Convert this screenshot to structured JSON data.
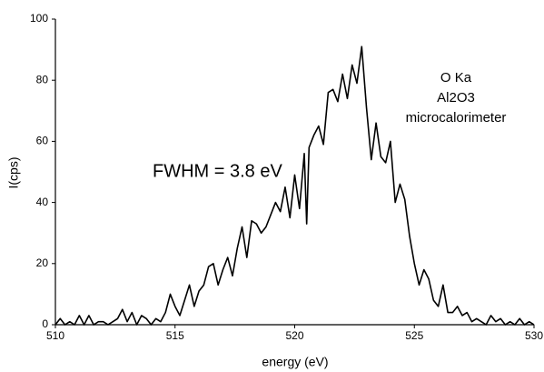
{
  "chart_data": {
    "type": "line",
    "annotations": [
      "FWHM = 3.8 eV",
      "O Ka",
      "Al2O3",
      "microcalorimeter"
    ],
    "xlabel": "energy (eV)",
    "ylabel": "I(cps)",
    "color": "#000000",
    "x": [
      510.0,
      510.2,
      510.4,
      510.6,
      510.8,
      511.0,
      511.2,
      511.4,
      511.6,
      511.8,
      512.0,
      512.2,
      512.4,
      512.6,
      512.8,
      513.0,
      513.2,
      513.4,
      513.6,
      513.8,
      514.0,
      514.2,
      514.4,
      514.6,
      514.8,
      515.0,
      515.2,
      515.4,
      515.6,
      515.8,
      516.0,
      516.2,
      516.4,
      516.6,
      516.8,
      517.0,
      517.2,
      517.4,
      517.6,
      517.8,
      518.0,
      518.2,
      518.4,
      518.6,
      518.8,
      519.0,
      519.2,
      519.4,
      519.6,
      519.8,
      520.0,
      520.2,
      520.4,
      520.5,
      520.6,
      520.8,
      521.0,
      521.2,
      521.4,
      521.6,
      521.8,
      522.0,
      522.2,
      522.4,
      522.6,
      522.8,
      523.0,
      523.2,
      523.4,
      523.6,
      523.8,
      524.0,
      524.2,
      524.4,
      524.6,
      524.8,
      525.0,
      525.2,
      525.4,
      525.6,
      525.8,
      526.0,
      526.2,
      526.4,
      526.6,
      526.8,
      527.0,
      527.2,
      527.4,
      527.6,
      527.8,
      528.0,
      528.2,
      528.4,
      528.6,
      528.8,
      529.0,
      529.2,
      529.4,
      529.6,
      529.8,
      530.0
    ],
    "values": [
      0,
      2,
      0,
      1,
      0,
      3,
      0,
      3,
      0,
      1,
      1,
      0,
      1,
      2,
      5,
      1,
      4,
      0,
      3,
      2,
      0,
      2,
      1,
      4,
      10,
      6,
      3,
      8,
      13,
      6,
      11,
      13,
      19,
      20,
      13,
      18,
      22,
      16,
      25,
      32,
      22,
      34,
      33,
      30,
      32,
      36,
      40,
      37,
      45,
      35,
      49,
      38,
      56,
      33,
      58,
      62,
      65,
      59,
      76,
      77,
      73,
      82,
      74,
      85,
      79,
      91,
      71,
      54,
      66,
      55,
      53,
      60,
      40,
      46,
      41,
      29,
      20,
      13,
      18,
      15,
      8,
      6,
      13,
      4,
      4,
      6,
      3,
      4,
      1,
      2,
      1,
      0,
      3,
      1,
      2,
      0,
      1,
      0,
      2,
      0,
      1,
      0
    ],
    "xlim": [
      510,
      530
    ],
    "xticks": [
      510,
      515,
      520,
      525,
      530
    ],
    "ylim": [
      0,
      100
    ],
    "yticks": [
      0,
      20,
      40,
      60,
      80,
      100
    ]
  }
}
